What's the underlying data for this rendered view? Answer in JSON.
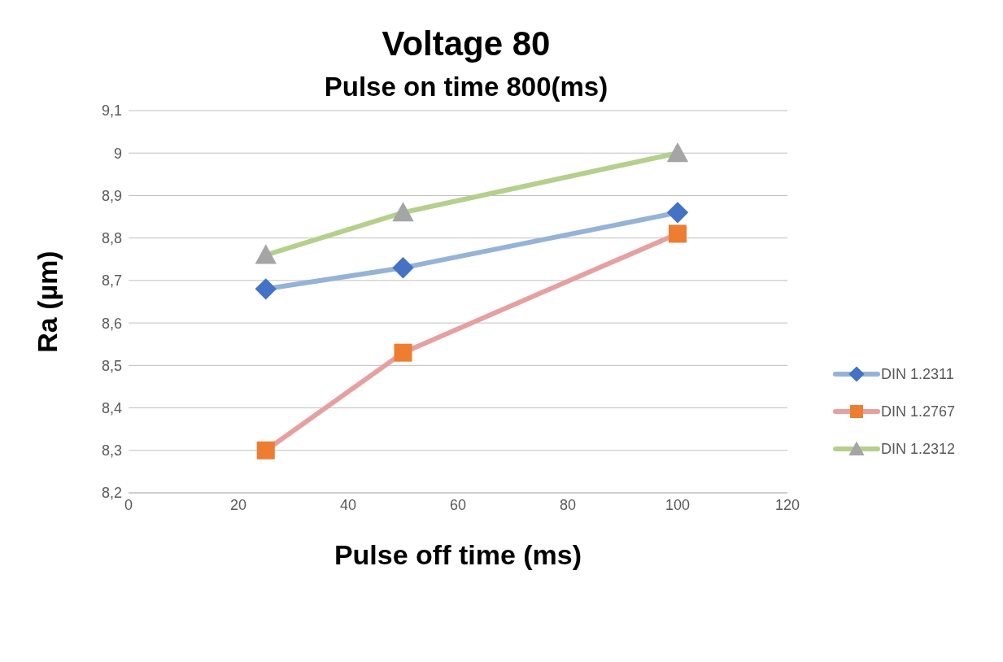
{
  "chart_data": {
    "type": "line",
    "title": "Voltage 80",
    "subtitle": "Pulse on time 800(ms)",
    "xlabel": "Pulse off time (ms)",
    "ylabel": "Ra (µm)",
    "x": [
      25,
      50,
      100
    ],
    "series": [
      {
        "name": "DIN 1.2311",
        "color": "#95b3d7",
        "colors": [
          "#4472c4",
          "#4472c4",
          "#4472c4"
        ],
        "marker": "diamond",
        "values": [
          8.68,
          8.73,
          8.86
        ]
      },
      {
        "name": "DIN 1.2767",
        "color": "#e6a0a0",
        "colors": [
          "#ed7d31",
          "#ed7d31",
          "#ed7d31"
        ],
        "marker": "square",
        "values": [
          8.3,
          8.53,
          8.81
        ]
      },
      {
        "name": "DIN 1.2312",
        "color": "#b4d08c",
        "colors": [
          "#a5a5a5",
          "#a5a5a5",
          "#a5a5a5"
        ],
        "marker": "triangle",
        "values": [
          8.76,
          8.86,
          9.0
        ]
      }
    ],
    "xlim": [
      0,
      120
    ],
    "xticks": [
      0,
      20,
      40,
      60,
      80,
      100,
      120
    ],
    "ylim": [
      8.2,
      9.1
    ],
    "yticks": [
      {
        "value": 8.2,
        "label": "8,2"
      },
      {
        "value": 8.3,
        "label": "8,3"
      },
      {
        "value": 8.4,
        "label": "8,4"
      },
      {
        "value": 8.5,
        "label": "8,5"
      },
      {
        "value": 8.6,
        "label": "8,6"
      },
      {
        "value": 8.7,
        "label": "8,7"
      },
      {
        "value": 8.8,
        "label": "8,8"
      },
      {
        "value": 8.9,
        "label": "8,9"
      },
      9,
      {
        "value": 9.1,
        "label": "9,1"
      }
    ],
    "grid": "y",
    "legend": "right",
    "line_style": "solid"
  }
}
